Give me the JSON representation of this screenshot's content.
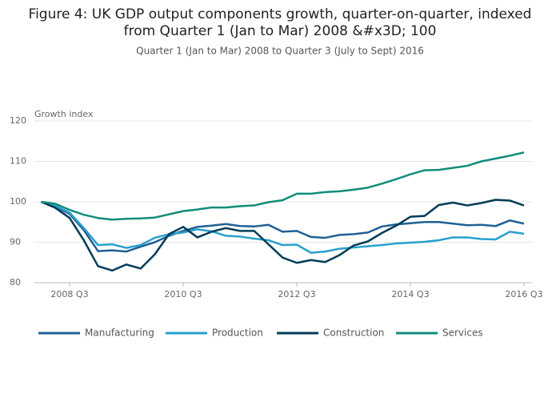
{
  "chart_data": {
    "type": "line",
    "title": [
      "Figure 4: UK GDP output components growth, quarter-on-quarter, indexed",
      "from Quarter 1 (Jan to Mar) 2008 &#x3D; 100"
    ],
    "subtitle": "Quarter 1 (Jan to Mar) 2008 to Quarter 3 (July to Sept) 2016",
    "y_label": "Growth index",
    "categories": [
      null,
      null,
      "2008 Q3",
      null,
      null,
      null,
      null,
      null,
      null,
      null,
      "2010 Q3",
      null,
      null,
      null,
      null,
      null,
      null,
      null,
      "2012 Q3",
      null,
      null,
      null,
      null,
      null,
      null,
      null,
      "2014 Q3",
      null,
      null,
      null,
      null,
      null,
      null,
      null,
      "2016 Q3"
    ],
    "ylim": [
      80,
      120
    ],
    "yticks": [
      80,
      90,
      100,
      110,
      120
    ],
    "grid": true,
    "series": [
      {
        "name": "Manufacturing",
        "color": "#206095",
        "values": [
          100,
          98.8,
          97,
          93,
          87.8,
          88,
          87.7,
          88.9,
          90,
          91.6,
          92.8,
          93.8,
          94.1,
          94.5,
          94,
          93.9,
          94.3,
          92.6,
          92.8,
          91.3,
          91.1,
          91.8,
          92,
          92.4,
          93.9,
          94.4,
          94.7,
          95,
          95,
          94.6,
          94.2,
          94.3,
          94,
          95.4,
          94.6
        ]
      },
      {
        "name": "Production",
        "color": "#27a0cc",
        "values": [
          100,
          99,
          97.3,
          93.5,
          89.3,
          89.5,
          88.6,
          89.3,
          91.1,
          92,
          92.4,
          93.2,
          92.7,
          91.6,
          91.4,
          90.9,
          90.5,
          89.3,
          89.4,
          87.4,
          87.7,
          88.4,
          88.7,
          89,
          89.3,
          89.7,
          89.9,
          90.1,
          90.5,
          91.2,
          91.2,
          90.8,
          90.7,
          92.6,
          92.1
        ]
      },
      {
        "name": "Construction",
        "color": "#003c57",
        "values": [
          100,
          98.5,
          96,
          90.5,
          84.1,
          83,
          84.5,
          83.5,
          87,
          92,
          93.8,
          91.2,
          92.6,
          93.5,
          92.8,
          92.8,
          89.5,
          86.2,
          84.9,
          85.6,
          85.1,
          86.8,
          89.2,
          90.2,
          92.3,
          94.1,
          96.3,
          96.5,
          99.2,
          99.8,
          99.1,
          99.7,
          100.5,
          100.3,
          99.1
        ]
      },
      {
        "name": "Services",
        "color": "#118c7b",
        "values": [
          100,
          99.5,
          98,
          96.8,
          96,
          95.6,
          95.8,
          95.9,
          96.1,
          96.9,
          97.7,
          98.1,
          98.6,
          98.6,
          98.9,
          99.1,
          99.9,
          100.4,
          102,
          102,
          102.4,
          102.6,
          103,
          103.5,
          104.5,
          105.6,
          106.8,
          107.8,
          107.9,
          108.4,
          108.9,
          110,
          110.7,
          111.4,
          112.2
        ]
      }
    ]
  }
}
